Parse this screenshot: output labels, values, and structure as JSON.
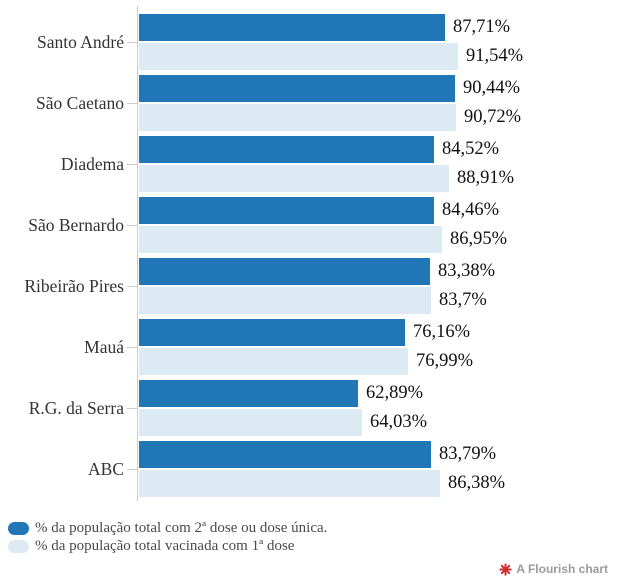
{
  "chart_data": {
    "type": "bar",
    "orientation": "horizontal",
    "categories": [
      "Santo André",
      "São Caetano",
      "Diadema",
      "São Bernardo",
      "Ribeirão Pires",
      "Mauá",
      "R.G. da Serra",
      "ABC"
    ],
    "series": [
      {
        "name": "% da população total com 2ª dose ou dose única.",
        "values": [
          87.71,
          90.44,
          84.52,
          84.46,
          83.38,
          76.16,
          62.89,
          83.79
        ],
        "labels": [
          "87,71%",
          "90,44%",
          "84,52%",
          "84,46%",
          "83,38%",
          "76,16%",
          "62,89%",
          "83,79%"
        ]
      },
      {
        "name": "% da população total vacinada com 1ª dose",
        "values": [
          91.54,
          90.72,
          88.91,
          86.95,
          83.7,
          76.99,
          64.03,
          86.38
        ],
        "labels": [
          "91,54%",
          "90,72%",
          "88,91%",
          "86,95%",
          "83,7%",
          "76,99%",
          "64,03%",
          "86,38%"
        ]
      }
    ],
    "xlim": [
      0,
      100
    ],
    "grid": false,
    "legend_position": "bottom-left",
    "value_labels": "outside-end"
  },
  "colors": {
    "series_primary": "#2176b5",
    "series_secondary": "#dceaf3",
    "line": "#cccccc",
    "city_text": "#333333",
    "value_text": "#111111",
    "legend_text": "#4a4a4a",
    "attribution_text": "#9b9b9b",
    "attribution_icon": "#d22d2d"
  },
  "attribution": {
    "text": "A Flourish chart"
  }
}
